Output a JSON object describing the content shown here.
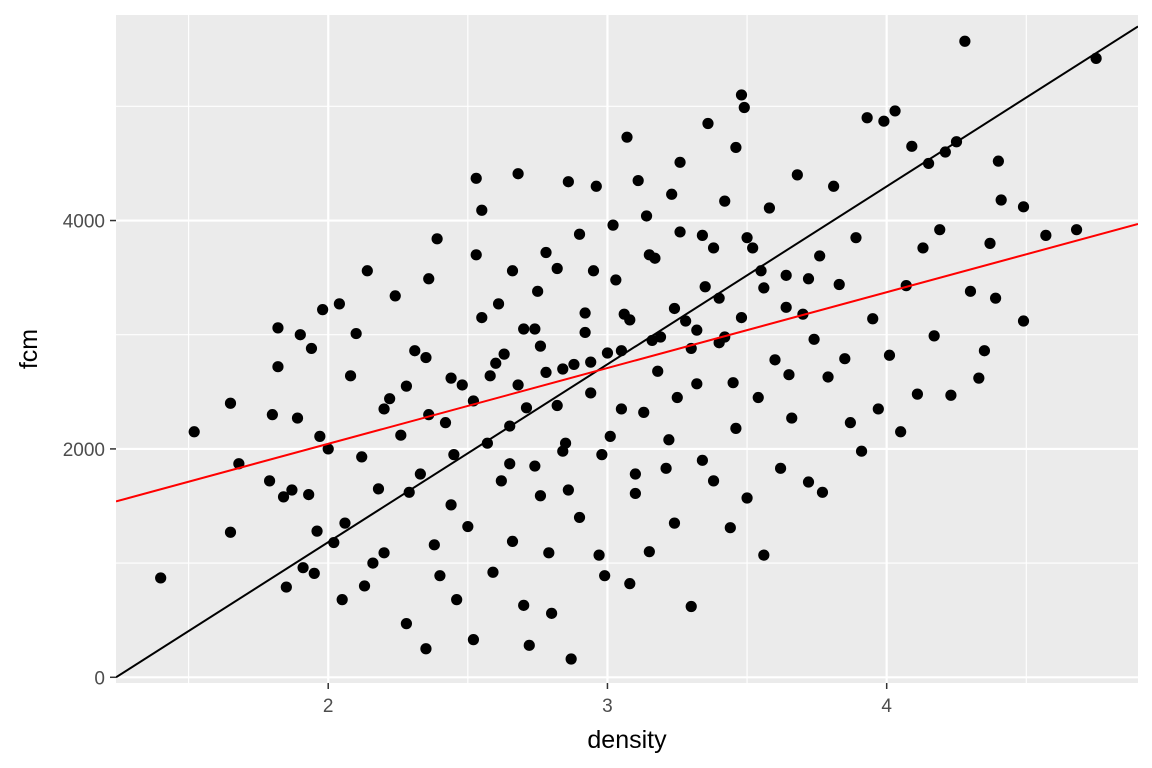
{
  "chart_data": {
    "type": "scatter",
    "title": "",
    "xlabel": "density",
    "ylabel": "fcm",
    "xlim": [
      1.24,
      4.9
    ],
    "ylim": [
      -50,
      5800
    ],
    "x_ticks": [
      2,
      3,
      4
    ],
    "x_tick_labels": [
      "2",
      "3",
      "4"
    ],
    "y_ticks": [
      0,
      2000,
      4000
    ],
    "y_tick_labels": [
      "0",
      "2000",
      "4000"
    ],
    "grid": true,
    "legend": "none",
    "colors": {
      "panel": "#ebebeb",
      "grid": "#ffffff",
      "points": "#000000",
      "identity_line": "#000000",
      "fit_line": "#ff0000"
    },
    "lines": [
      {
        "kind": "reference",
        "color": "#000000",
        "x": [
          1.24,
          4.9
        ],
        "y": [
          0,
          5700
        ]
      },
      {
        "kind": "fit",
        "color": "#ff0000",
        "x": [
          1.24,
          4.9
        ],
        "y": [
          1540,
          3970
        ]
      }
    ],
    "series": [
      {
        "points": [
          [
            1.4,
            870
          ],
          [
            1.52,
            2150
          ],
          [
            1.65,
            2400
          ],
          [
            1.65,
            1270
          ],
          [
            1.68,
            1870
          ],
          [
            1.79,
            1720
          ],
          [
            1.82,
            2720
          ],
          [
            1.82,
            3060
          ],
          [
            1.8,
            2300
          ],
          [
            1.84,
            1580
          ],
          [
            1.85,
            790
          ],
          [
            1.87,
            1640
          ],
          [
            1.89,
            2270
          ],
          [
            1.9,
            3000
          ],
          [
            1.91,
            960
          ],
          [
            1.93,
            1600
          ],
          [
            1.94,
            2880
          ],
          [
            1.95,
            910
          ],
          [
            1.96,
            1280
          ],
          [
            1.97,
            2110
          ],
          [
            1.98,
            3220
          ],
          [
            2.0,
            2000
          ],
          [
            2.02,
            1180
          ],
          [
            2.04,
            3270
          ],
          [
            2.05,
            680
          ],
          [
            2.06,
            1350
          ],
          [
            2.08,
            2640
          ],
          [
            2.1,
            3010
          ],
          [
            2.12,
            1930
          ],
          [
            2.13,
            800
          ],
          [
            2.14,
            3560
          ],
          [
            2.16,
            1000
          ],
          [
            2.18,
            1650
          ],
          [
            2.2,
            1090
          ],
          [
            2.22,
            2440
          ],
          [
            2.24,
            3340
          ],
          [
            2.26,
            2120
          ],
          [
            2.28,
            470
          ],
          [
            2.29,
            1620
          ],
          [
            2.31,
            2860
          ],
          [
            2.33,
            1780
          ],
          [
            2.35,
            250
          ],
          [
            2.36,
            3490
          ],
          [
            2.38,
            1160
          ],
          [
            2.39,
            3840
          ],
          [
            2.4,
            890
          ],
          [
            2.42,
            2230
          ],
          [
            2.44,
            1510
          ],
          [
            2.46,
            680
          ],
          [
            2.48,
            2560
          ],
          [
            2.5,
            1320
          ],
          [
            2.52,
            330
          ],
          [
            2.53,
            3700
          ],
          [
            2.55,
            4090
          ],
          [
            2.53,
            4370
          ],
          [
            2.57,
            2050
          ],
          [
            2.59,
            920
          ],
          [
            2.61,
            3270
          ],
          [
            2.63,
            2830
          ],
          [
            2.65,
            1870
          ],
          [
            2.66,
            1190
          ],
          [
            2.68,
            4410
          ],
          [
            2.7,
            630
          ],
          [
            2.71,
            2360
          ],
          [
            2.72,
            280
          ],
          [
            2.74,
            3050
          ],
          [
            2.76,
            1590
          ],
          [
            2.78,
            2670
          ],
          [
            2.79,
            1090
          ],
          [
            2.8,
            560
          ],
          [
            2.82,
            3580
          ],
          [
            2.84,
            1980
          ],
          [
            2.86,
            4340
          ],
          [
            2.87,
            160
          ],
          [
            2.88,
            2740
          ],
          [
            2.9,
            1400
          ],
          [
            2.92,
            3190
          ],
          [
            2.94,
            2490
          ],
          [
            2.96,
            4300
          ],
          [
            2.97,
            1070
          ],
          [
            2.99,
            890
          ],
          [
            3.01,
            2110
          ],
          [
            3.03,
            3480
          ],
          [
            3.05,
            2860
          ],
          [
            3.07,
            4730
          ],
          [
            3.08,
            820
          ],
          [
            3.1,
            1610
          ],
          [
            3.11,
            4350
          ],
          [
            3.13,
            2320
          ],
          [
            3.15,
            1100
          ],
          [
            3.17,
            3670
          ],
          [
            3.19,
            2980
          ],
          [
            3.21,
            1830
          ],
          [
            3.23,
            4230
          ],
          [
            3.24,
            1350
          ],
          [
            3.26,
            4510
          ],
          [
            3.28,
            3120
          ],
          [
            3.3,
            620
          ],
          [
            3.32,
            2570
          ],
          [
            3.34,
            3870
          ],
          [
            3.36,
            4850
          ],
          [
            3.38,
            1720
          ],
          [
            3.4,
            2930
          ],
          [
            3.42,
            4170
          ],
          [
            3.44,
            1310
          ],
          [
            3.46,
            4640
          ],
          [
            3.48,
            5100
          ],
          [
            3.49,
            4990
          ],
          [
            3.5,
            1570
          ],
          [
            3.52,
            3760
          ],
          [
            3.54,
            2450
          ],
          [
            3.56,
            1070
          ],
          [
            3.58,
            4110
          ],
          [
            3.6,
            2780
          ],
          [
            3.62,
            1830
          ],
          [
            3.64,
            3520
          ],
          [
            3.66,
            2270
          ],
          [
            3.68,
            4400
          ],
          [
            3.7,
            3180
          ],
          [
            3.72,
            1710
          ],
          [
            3.74,
            2960
          ],
          [
            3.76,
            3690
          ],
          [
            3.77,
            1620
          ],
          [
            3.79,
            2630
          ],
          [
            3.81,
            4300
          ],
          [
            3.83,
            3440
          ],
          [
            3.85,
            2790
          ],
          [
            3.87,
            2230
          ],
          [
            3.89,
            3850
          ],
          [
            3.91,
            1980
          ],
          [
            3.93,
            4900
          ],
          [
            3.95,
            3140
          ],
          [
            3.97,
            2350
          ],
          [
            3.99,
            4870
          ],
          [
            4.01,
            2820
          ],
          [
            4.03,
            4960
          ],
          [
            4.05,
            2150
          ],
          [
            4.07,
            3430
          ],
          [
            4.09,
            4650
          ],
          [
            4.11,
            2480
          ],
          [
            4.13,
            3760
          ],
          [
            4.15,
            4500
          ],
          [
            4.17,
            2990
          ],
          [
            4.19,
            3920
          ],
          [
            4.21,
            4600
          ],
          [
            4.23,
            2470
          ],
          [
            4.25,
            4690
          ],
          [
            4.28,
            5570
          ],
          [
            4.3,
            3380
          ],
          [
            4.33,
            2620
          ],
          [
            4.35,
            2860
          ],
          [
            4.37,
            3800
          ],
          [
            4.39,
            3320
          ],
          [
            4.4,
            4520
          ],
          [
            4.41,
            4180
          ],
          [
            4.49,
            3120
          ],
          [
            4.49,
            4120
          ],
          [
            4.57,
            3870
          ],
          [
            4.68,
            3920
          ],
          [
            4.75,
            5420
          ],
          [
            2.2,
            2350
          ],
          [
            2.28,
            2550
          ],
          [
            2.36,
            2300
          ],
          [
            2.44,
            2620
          ],
          [
            2.52,
            2420
          ],
          [
            2.6,
            2750
          ],
          [
            2.68,
            2560
          ],
          [
            2.76,
            2900
          ],
          [
            2.84,
            2700
          ],
          [
            2.92,
            3020
          ],
          [
            3.0,
            2840
          ],
          [
            3.08,
            3130
          ],
          [
            3.16,
            2950
          ],
          [
            3.24,
            3230
          ],
          [
            3.32,
            3040
          ],
          [
            3.4,
            3320
          ],
          [
            3.48,
            3150
          ],
          [
            3.56,
            3410
          ],
          [
            3.64,
            3240
          ],
          [
            3.72,
            3490
          ],
          [
            2.35,
            2800
          ],
          [
            2.45,
            1950
          ],
          [
            2.55,
            3150
          ],
          [
            2.65,
            2200
          ],
          [
            2.75,
            3380
          ],
          [
            2.85,
            2050
          ],
          [
            2.95,
            3560
          ],
          [
            3.05,
            2350
          ],
          [
            3.15,
            3700
          ],
          [
            3.25,
            2450
          ],
          [
            3.35,
            3420
          ],
          [
            3.45,
            2580
          ],
          [
            3.55,
            3560
          ],
          [
            3.65,
            2650
          ],
          [
            2.58,
            2640
          ],
          [
            2.7,
            3050
          ],
          [
            2.82,
            2380
          ],
          [
            2.94,
            2760
          ],
          [
            3.06,
            3180
          ],
          [
            3.18,
            2680
          ],
          [
            3.3,
            2880
          ],
          [
            3.42,
            2980
          ],
          [
            2.62,
            1720
          ],
          [
            2.74,
            1850
          ],
          [
            2.86,
            1640
          ],
          [
            2.98,
            1950
          ],
          [
            3.1,
            1780
          ],
          [
            3.22,
            2080
          ],
          [
            3.34,
            1900
          ],
          [
            3.46,
            2180
          ],
          [
            2.66,
            3560
          ],
          [
            2.78,
            3720
          ],
          [
            2.9,
            3880
          ],
          [
            3.02,
            3960
          ],
          [
            3.14,
            4040
          ],
          [
            3.26,
            3900
          ],
          [
            3.38,
            3760
          ],
          [
            3.5,
            3850
          ]
        ]
      }
    ]
  }
}
